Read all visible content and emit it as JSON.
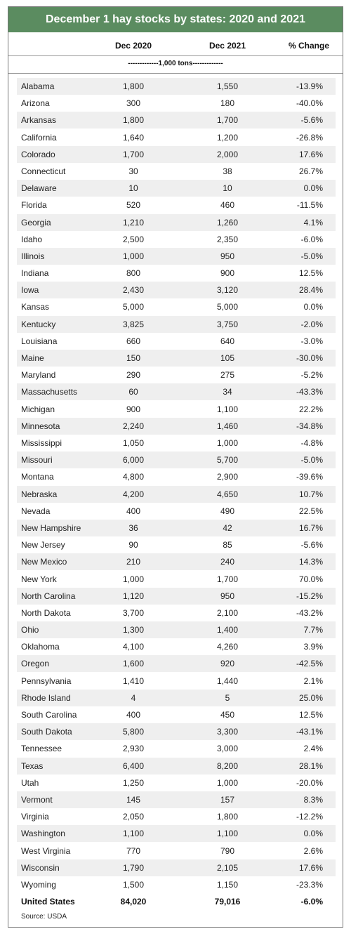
{
  "title": "December 1 hay stocks by states: 2020 and 2021",
  "table": {
    "columns": [
      "Dec 2020",
      "Dec 2021",
      "% Change"
    ],
    "units": "-------------1,000 tons-------------",
    "rows": [
      [
        "Alabama",
        "1,800",
        "1,550",
        "-13.9%"
      ],
      [
        "Arizona",
        "300",
        "180",
        "-40.0%"
      ],
      [
        "Arkansas",
        "1,800",
        "1,700",
        "-5.6%"
      ],
      [
        "California",
        "1,640",
        "1,200",
        "-26.8%"
      ],
      [
        "Colorado",
        "1,700",
        "2,000",
        "17.6%"
      ],
      [
        "Connecticut",
        "30",
        "38",
        "26.7%"
      ],
      [
        "Delaware",
        "10",
        "10",
        "0.0%"
      ],
      [
        "Florida",
        "520",
        "460",
        "-11.5%"
      ],
      [
        "Georgia",
        "1,210",
        "1,260",
        "4.1%"
      ],
      [
        "Idaho",
        "2,500",
        "2,350",
        "-6.0%"
      ],
      [
        "Illinois",
        "1,000",
        "950",
        "-5.0%"
      ],
      [
        "Indiana",
        "800",
        "900",
        "12.5%"
      ],
      [
        "Iowa",
        "2,430",
        "3,120",
        "28.4%"
      ],
      [
        "Kansas",
        "5,000",
        "5,000",
        "0.0%"
      ],
      [
        "Kentucky",
        "3,825",
        "3,750",
        "-2.0%"
      ],
      [
        "Louisiana",
        "660",
        "640",
        "-3.0%"
      ],
      [
        "Maine",
        "150",
        "105",
        "-30.0%"
      ],
      [
        "Maryland",
        "290",
        "275",
        "-5.2%"
      ],
      [
        "Massachusetts",
        "60",
        "34",
        "-43.3%"
      ],
      [
        "Michigan",
        "900",
        "1,100",
        "22.2%"
      ],
      [
        "Minnesota",
        "2,240",
        "1,460",
        "-34.8%"
      ],
      [
        "Mississippi",
        "1,050",
        "1,000",
        "-4.8%"
      ],
      [
        "Missouri",
        "6,000",
        "5,700",
        "-5.0%"
      ],
      [
        "Montana",
        "4,800",
        "2,900",
        "-39.6%"
      ],
      [
        "Nebraska",
        "4,200",
        "4,650",
        "10.7%"
      ],
      [
        "Nevada",
        "400",
        "490",
        "22.5%"
      ],
      [
        "New Hampshire",
        "36",
        "42",
        "16.7%"
      ],
      [
        "New Jersey",
        "90",
        "85",
        "-5.6%"
      ],
      [
        "New Mexico",
        "210",
        "240",
        "14.3%"
      ],
      [
        "New York",
        "1,000",
        "1,700",
        "70.0%"
      ],
      [
        "North Carolina",
        "1,120",
        "950",
        "-15.2%"
      ],
      [
        "North Dakota",
        "3,700",
        "2,100",
        "-43.2%"
      ],
      [
        "Ohio",
        "1,300",
        "1,400",
        "7.7%"
      ],
      [
        "Oklahoma",
        "4,100",
        "4,260",
        "3.9%"
      ],
      [
        "Oregon",
        "1,600",
        "920",
        "-42.5%"
      ],
      [
        "Pennsylvania",
        "1,410",
        "1,440",
        "2.1%"
      ],
      [
        "Rhode Island",
        "4",
        "5",
        "25.0%"
      ],
      [
        "South Carolina",
        "400",
        "450",
        "12.5%"
      ],
      [
        "South Dakota",
        "5,800",
        "3,300",
        "-43.1%"
      ],
      [
        "Tennessee",
        "2,930",
        "3,000",
        "2.4%"
      ],
      [
        "Texas",
        "6,400",
        "8,200",
        "28.1%"
      ],
      [
        "Utah",
        "1,250",
        "1,000",
        "-20.0%"
      ],
      [
        "Vermont",
        "145",
        "157",
        "8.3%"
      ],
      [
        "Virginia",
        "2,050",
        "1,800",
        "-12.2%"
      ],
      [
        "Washington",
        "1,100",
        "1,100",
        "0.0%"
      ],
      [
        "West Virginia",
        "770",
        "790",
        "2.6%"
      ],
      [
        "Wisconsin",
        "1,790",
        "2,105",
        "17.6%"
      ],
      [
        "Wyoming",
        "1,500",
        "1,150",
        "-23.3%"
      ]
    ],
    "total": [
      "United States",
      "84,020",
      "79,016",
      "-6.0%"
    ]
  },
  "source": "Source: USDA"
}
